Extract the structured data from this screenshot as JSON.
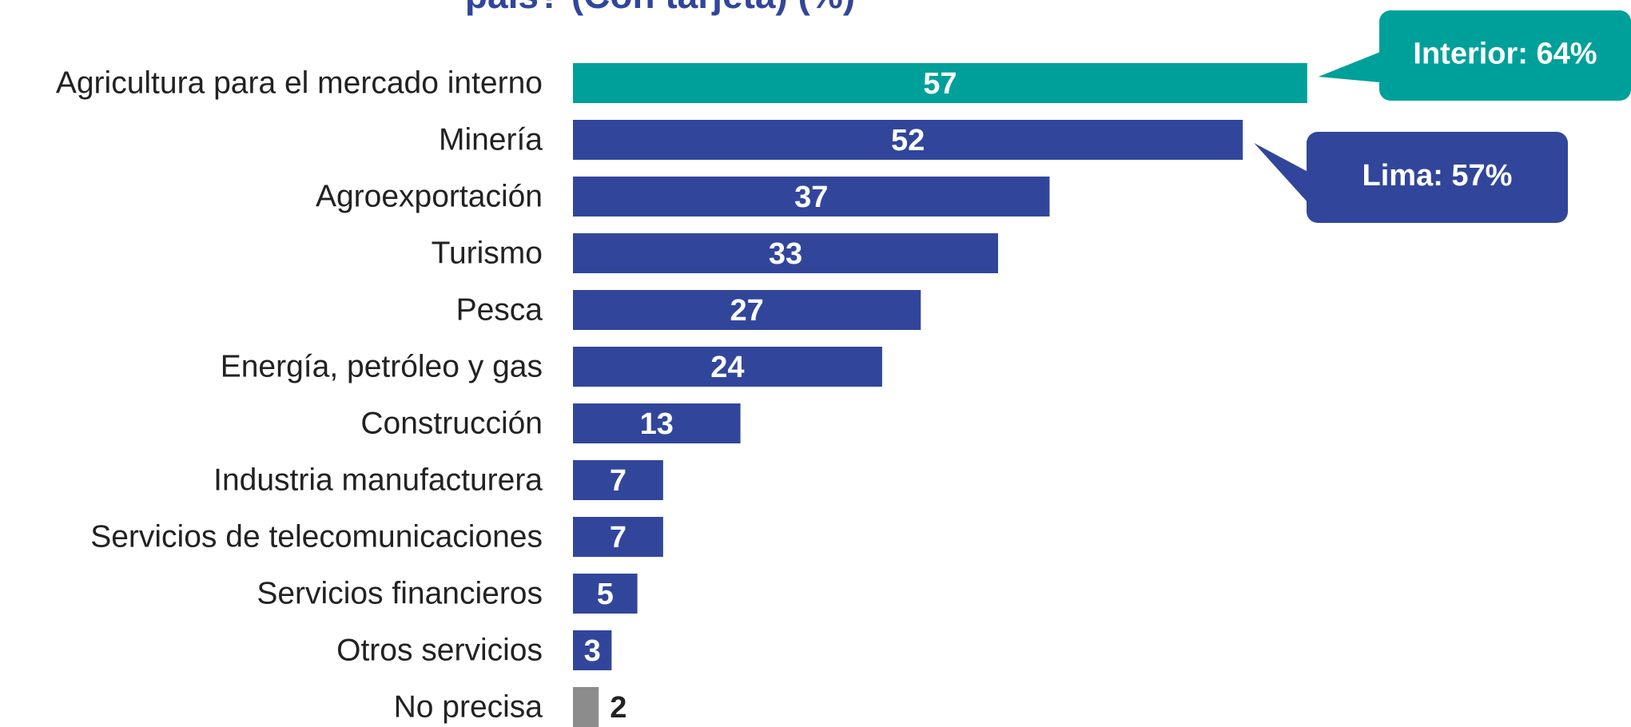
{
  "chart_data": {
    "type": "bar",
    "orientation": "horizontal",
    "title": "país? (Con tarjeta) (%)",
    "categories": [
      "Agricultura para el mercado interno",
      "Minería",
      "Agroexportación",
      "Turismo",
      "Pesca",
      "Energía, petróleo y gas",
      "Construcción",
      "Industria manufacturera",
      "Servicios de telecomunicaciones",
      "Servicios financieros",
      "Otros servicios",
      "No precisa"
    ],
    "values": [
      57,
      52,
      37,
      33,
      27,
      24,
      13,
      7,
      7,
      5,
      3,
      2
    ],
    "colors": [
      "#00a09a",
      "#31469b",
      "#31469b",
      "#31469b",
      "#31469b",
      "#31469b",
      "#31469b",
      "#31469b",
      "#31469b",
      "#31469b",
      "#31469b",
      "#8c8c8c"
    ],
    "annotations": [
      {
        "text": "Interior: 64%",
        "color": "#00a09a"
      },
      {
        "text": "Lima: 57%",
        "color": "#31469b"
      }
    ]
  }
}
